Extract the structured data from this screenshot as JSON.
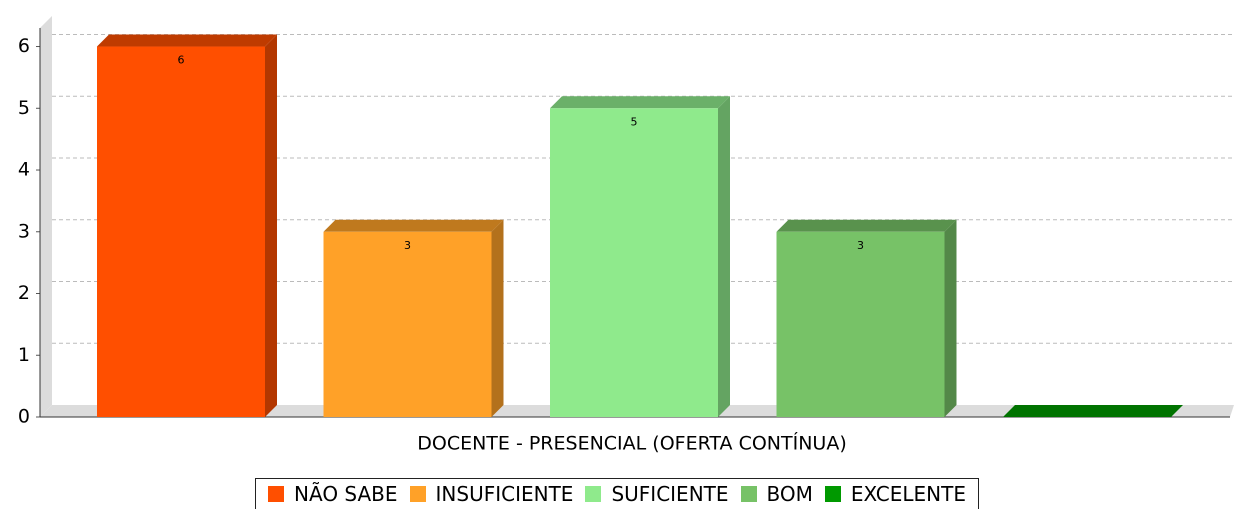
{
  "chart_data": {
    "type": "bar3d",
    "categories": [
      "DOCENTE - PRESENCIAL (OFERTA CONTÍNUA)"
    ],
    "series": [
      {
        "name": "NÃO SABE",
        "color": "#ff4f00",
        "values": [
          6
        ]
      },
      {
        "name": "INSUFICIENTE",
        "color": "#ffa128",
        "values": [
          3
        ]
      },
      {
        "name": "SUFICIENTE",
        "color": "#8fea8c",
        "values": [
          5
        ]
      },
      {
        "name": "BOM",
        "color": "#77c267",
        "values": [
          3
        ]
      },
      {
        "name": "EXCELENTE",
        "color": "#009900",
        "values": [
          0
        ]
      }
    ],
    "ylim": [
      0,
      6.3
    ],
    "yticks": [
      0,
      1,
      2,
      3,
      4,
      5,
      6
    ],
    "grid": true,
    "legend": "bottom"
  }
}
